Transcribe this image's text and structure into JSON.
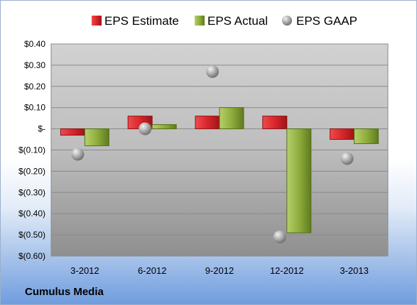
{
  "company": "Cumulus Media",
  "chart_data": {
    "type": "bar",
    "categories": [
      "3-2012",
      "6-2012",
      "9-2012",
      "12-2012",
      "3-2013"
    ],
    "series": [
      {
        "name": "EPS Estimate",
        "kind": "bar",
        "color": "#d8262b",
        "values": [
          -0.03,
          0.06,
          0.06,
          0.06,
          -0.05
        ]
      },
      {
        "name": "EPS Actual",
        "kind": "bar",
        "color": "#8fae3d",
        "values": [
          -0.08,
          0.02,
          0.1,
          -0.49,
          -0.07
        ]
      },
      {
        "name": "EPS GAAP",
        "kind": "marker",
        "color": "#a8a8a8",
        "values": [
          -0.12,
          0.0,
          0.27,
          -0.51,
          -0.14
        ]
      }
    ],
    "yticks": [
      0.4,
      0.3,
      0.2,
      0.1,
      0,
      -0.1,
      -0.2,
      -0.3,
      -0.4,
      -0.5,
      -0.6
    ],
    "ytick_labels": [
      "$0.40",
      "$0.30",
      "$0.20",
      "$0.10",
      "$-",
      "$(0.10)",
      "$(0.20)",
      "$(0.30)",
      "$(0.40)",
      "$(0.50)",
      "$(0.60)"
    ],
    "ylim": [
      -0.6,
      0.4
    ],
    "grid": true,
    "legend": "top"
  }
}
